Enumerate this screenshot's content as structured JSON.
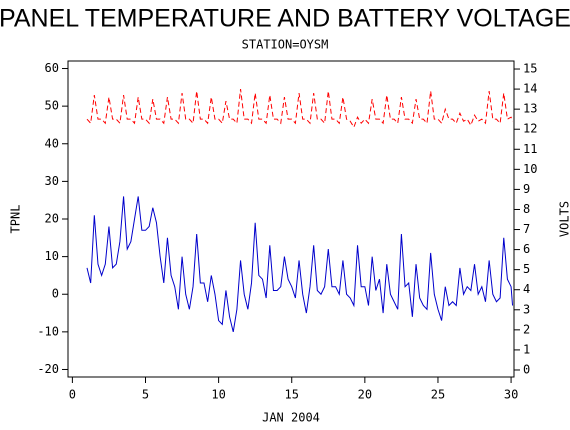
{
  "chart_data": {
    "type": "line",
    "title": "PANEL TEMPERATURE AND BATTERY VOLTAGE",
    "subtitle": "STATION=OYSM",
    "x_label": "JAN 2004",
    "y_label": "TPNL",
    "y2_label": "VOLTS",
    "xlim": [
      -0.3,
      30.2
    ],
    "xticks": [
      0,
      5,
      10,
      15,
      20,
      25,
      30
    ],
    "ylim": [
      -22,
      62
    ],
    "yticks": [
      -20,
      -10,
      0,
      10,
      20,
      30,
      40,
      50,
      60
    ],
    "y2lim": [
      -0.35,
      15.4
    ],
    "y2ticks": [
      0,
      1,
      2,
      3,
      4,
      5,
      6,
      7,
      8,
      9,
      10,
      11,
      12,
      13,
      14,
      15
    ],
    "x": [
      1,
      1.25,
      1.5,
      1.75,
      2,
      2.25,
      2.5,
      2.75,
      3,
      3.25,
      3.5,
      3.75,
      4,
      4.25,
      4.5,
      4.75,
      5,
      5.25,
      5.5,
      5.75,
      6,
      6.25,
      6.5,
      6.75,
      7,
      7.25,
      7.5,
      7.75,
      8,
      8.25,
      8.5,
      8.75,
      9,
      9.25,
      9.5,
      9.75,
      10,
      10.25,
      10.5,
      10.75,
      11,
      11.25,
      11.5,
      11.75,
      12,
      12.25,
      12.5,
      12.75,
      13,
      13.25,
      13.5,
      13.75,
      14,
      14.25,
      14.5,
      14.75,
      15,
      15.25,
      15.5,
      15.75,
      16,
      16.25,
      16.5,
      16.75,
      17,
      17.25,
      17.5,
      17.75,
      18,
      18.25,
      18.5,
      18.75,
      19,
      19.25,
      19.5,
      19.75,
      20,
      20.25,
      20.5,
      20.75,
      21,
      21.25,
      21.5,
      21.75,
      22,
      22.25,
      22.5,
      22.75,
      23,
      23.25,
      23.5,
      23.75,
      24,
      24.25,
      24.5,
      24.75,
      25,
      25.25,
      25.5,
      25.75,
      26,
      26.25,
      26.5,
      26.75,
      27,
      27.25,
      27.5,
      27.75,
      28,
      28.25,
      28.5,
      28.75,
      29,
      29.25,
      29.5,
      29.75,
      30,
      30.1
    ],
    "series": [
      {
        "color": "#0000cc",
        "axis": "y",
        "dash": false,
        "values": [
          7,
          3,
          21,
          8,
          5,
          8,
          18,
          7,
          8,
          14,
          26,
          12,
          14,
          20,
          26,
          17,
          17,
          18,
          23,
          19,
          10,
          3,
          15,
          5,
          2,
          -4,
          10,
          0,
          -4,
          2,
          16,
          3,
          3,
          -2,
          5,
          0,
          -7,
          -8,
          1,
          -6,
          -10,
          -4,
          9,
          0,
          -4,
          3,
          19,
          5,
          4,
          -1,
          13,
          1,
          1,
          2,
          10,
          4,
          2,
          -1,
          9,
          0,
          -5,
          2,
          13,
          1,
          0,
          2,
          12,
          2,
          2,
          0,
          9,
          0,
          -1,
          -3,
          13,
          2,
          2,
          -3,
          10,
          1,
          4,
          -5,
          8,
          0,
          -2,
          -4,
          16,
          2,
          3,
          -6,
          8,
          -1,
          -3,
          -4,
          11,
          0,
          -4,
          -7,
          2,
          -3,
          -2,
          -3,
          7,
          0,
          2,
          1,
          8,
          0,
          2,
          -2,
          9,
          0,
          -2,
          -1,
          15,
          4,
          2,
          -3
        ]
      },
      {
        "color": "#ff0000",
        "axis": "y2",
        "dash": true,
        "values": [
          12.5,
          12.3,
          13.7,
          12.5,
          12.5,
          12.3,
          13.6,
          12.5,
          12.5,
          12.3,
          13.7,
          12.5,
          12.5,
          12.3,
          13.6,
          12.5,
          12.5,
          12.3,
          13.5,
          12.5,
          12.5,
          12.3,
          13.6,
          12.5,
          12.5,
          12.3,
          13.8,
          12.5,
          12.5,
          12.3,
          13.9,
          12.5,
          12.5,
          12.3,
          13.6,
          12.5,
          12.5,
          12.3,
          13.4,
          12.5,
          12.5,
          12.3,
          14.0,
          12.5,
          12.5,
          12.3,
          13.8,
          12.5,
          12.5,
          12.3,
          13.7,
          12.5,
          12.5,
          12.3,
          13.6,
          12.5,
          12.5,
          12.3,
          13.8,
          12.5,
          12.5,
          12.3,
          13.8,
          12.5,
          12.5,
          12.3,
          13.9,
          12.5,
          12.5,
          12.3,
          13.6,
          12.5,
          12.4,
          12.1,
          12.6,
          12.3,
          12.5,
          12.3,
          13.5,
          12.5,
          12.5,
          12.3,
          13.7,
          12.5,
          12.5,
          12.3,
          13.6,
          12.5,
          12.5,
          12.3,
          13.5,
          12.5,
          12.5,
          12.3,
          13.9,
          12.5,
          12.5,
          12.3,
          13.0,
          12.5,
          12.5,
          12.3,
          12.8,
          12.4,
          12.5,
          12.2,
          12.7,
          12.4,
          12.5,
          12.3,
          13.9,
          12.5,
          12.5,
          12.3,
          13.8,
          12.5,
          12.6,
          12.4
        ]
      }
    ]
  }
}
